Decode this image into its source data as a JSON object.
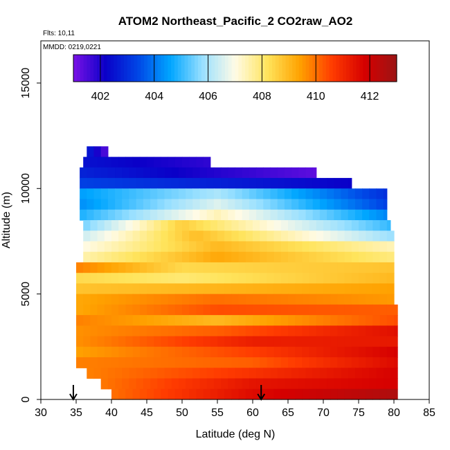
{
  "chart_data": {
    "type": "heatmap",
    "title": "ATOM2 Northeast_Pacific_2 CO2raw_AO2",
    "annotations": {
      "flights": "Flts: 10,11",
      "dates": "MMDD: 0219,0221"
    },
    "xlabel": "Latitude (deg N)",
    "ylabel": "Altitude (m)",
    "xlim": [
      30,
      85
    ],
    "ylim": [
      0,
      17000
    ],
    "x_ticks": [
      "30",
      "35",
      "40",
      "45",
      "50",
      "55",
      "60",
      "65",
      "70",
      "75",
      "80",
      "85"
    ],
    "y_ticks": [
      "0",
      "5000",
      "10000",
      "15000"
    ],
    "colorbar": {
      "range": [
        401,
        413
      ],
      "ticks": [
        "402",
        "404",
        "406",
        "408",
        "410",
        "412"
      ],
      "colors": [
        "#7a12e6",
        "#0a00c8",
        "#0046e6",
        "#00a6ff",
        "#9ae0ff",
        "#fffbe6",
        "#ffe45c",
        "#ffa200",
        "#ff3c00",
        "#d60000",
        "#9b1414"
      ],
      "placement": "top-inside"
    },
    "profile_markers_lat": [
      34.6,
      61.2
    ],
    "layers": [
      {
        "alt": [
          11500,
          12000
        ],
        "lat": [
          36.5,
          39.5
        ],
        "ends": [
          402.8,
          401.3
        ],
        "mid": null
      },
      {
        "alt": [
          11000,
          11500
        ],
        "lat": [
          36,
          54
        ],
        "ends": [
          402.5,
          401.8
        ],
        "mid": null
      },
      {
        "alt": [
          10500,
          11000
        ],
        "lat": [
          35.5,
          69
        ],
        "ends": [
          402.8,
          401.3
        ],
        "mid": null
      },
      {
        "alt": [
          10000,
          10500
        ],
        "lat": [
          35.5,
          74
        ],
        "ends": [
          403.3,
          402.2
        ],
        "mid": null
      },
      {
        "alt": [
          9500,
          10000
        ],
        "lat": [
          35.5,
          79
        ],
        "ends": [
          404.5,
          403
        ],
        "mid": [
          55,
          406
        ]
      },
      {
        "alt": [
          9000,
          9500
        ],
        "lat": [
          35.5,
          79
        ],
        "ends": [
          404.3,
          403.3
        ],
        "mid": [
          55,
          406.6
        ]
      },
      {
        "alt": [
          8500,
          9000
        ],
        "lat": [
          35.5,
          79
        ],
        "ends": [
          404.8,
          404.2
        ],
        "mid": [
          55,
          407.4
        ]
      },
      {
        "alt": [
          8000,
          8500
        ],
        "lat": [
          36,
          79.5
        ],
        "ends": [
          405.5,
          405
        ],
        "mid": [
          50,
          408.6
        ]
      },
      {
        "alt": [
          7500,
          8000
        ],
        "lat": [
          36,
          80
        ],
        "ends": [
          406.4,
          405.8
        ],
        "mid": [
          52,
          408.9
        ]
      },
      {
        "alt": [
          7000,
          7500
        ],
        "lat": [
          36,
          80
        ],
        "ends": [
          407,
          407.4
        ],
        "mid": [
          55,
          409
        ]
      },
      {
        "alt": [
          6500,
          7000
        ],
        "lat": [
          36,
          80
        ],
        "ends": [
          407.5,
          407.9
        ],
        "mid": [
          55,
          409.3
        ]
      },
      {
        "alt": [
          6000,
          6500
        ],
        "lat": [
          35,
          80
        ],
        "ends": [
          409.8,
          408.8
        ],
        "mid": [
          50,
          408.4
        ]
      },
      {
        "alt": [
          5500,
          6000
        ],
        "lat": [
          35,
          80
        ],
        "ends": [
          408.4,
          409
        ],
        "mid": [
          50,
          408
        ]
      },
      {
        "alt": [
          5000,
          5500
        ],
        "lat": [
          35,
          80
        ],
        "ends": [
          408.8,
          409.4
        ],
        "mid": [
          50,
          409
        ]
      },
      {
        "alt": [
          4500,
          5000
        ],
        "lat": [
          35,
          80
        ],
        "ends": [
          409.3,
          409.5
        ],
        "mid": [
          55,
          410
        ]
      },
      {
        "alt": [
          4000,
          4500
        ],
        "lat": [
          35,
          80.5
        ],
        "ends": [
          409.3,
          410.2
        ],
        "mid": [
          55,
          410.4
        ]
      },
      {
        "alt": [
          3500,
          4000
        ],
        "lat": [
          35,
          80.5
        ],
        "ends": [
          409.8,
          410.4
        ],
        "mid": [
          55,
          409
        ]
      },
      {
        "alt": [
          3000,
          3500
        ],
        "lat": [
          35,
          80.5
        ],
        "ends": [
          409.6,
          411.5
        ],
        "mid": [
          55,
          410.2
        ]
      },
      {
        "alt": [
          2500,
          3000
        ],
        "lat": [
          35,
          80.5
        ],
        "ends": [
          409.6,
          411.3
        ],
        "mid": [
          60,
          411.2
        ]
      },
      {
        "alt": [
          2000,
          2500
        ],
        "lat": [
          35,
          80.5
        ],
        "ends": [
          409.4,
          411.8
        ],
        "mid": [
          60,
          410.6
        ]
      },
      {
        "alt": [
          1500,
          2000
        ],
        "lat": [
          35,
          80.5
        ],
        "ends": [
          409.8,
          411.6
        ],
        "mid": [
          60,
          410.2
        ]
      },
      {
        "alt": [
          1000,
          1500
        ],
        "lat": [
          36.5,
          80.5
        ],
        "ends": [
          409.8,
          411.8
        ],
        "mid": [
          60,
          410.8
        ]
      },
      {
        "alt": [
          500,
          1000
        ],
        "lat": [
          38.5,
          80.5
        ],
        "ends": [
          409.9,
          411.8
        ],
        "mid": [
          60,
          411.4
        ]
      },
      {
        "alt": [
          0,
          500
        ],
        "lat": [
          40,
          80.5
        ],
        "ends": [
          410,
          412.6
        ],
        "mid": [
          60,
          411.6
        ]
      }
    ]
  }
}
